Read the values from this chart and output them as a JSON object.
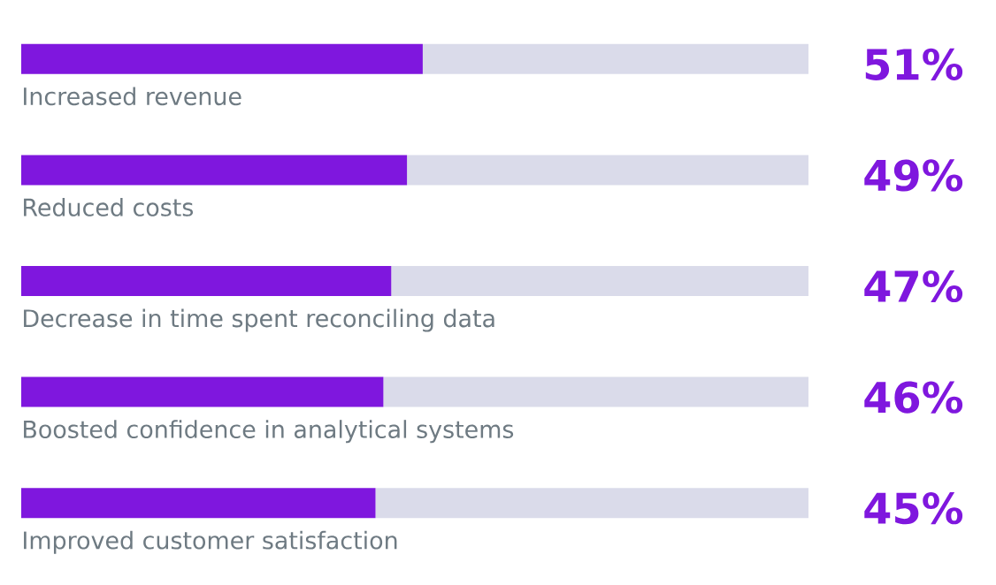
{
  "chart_data": {
    "type": "bar",
    "orientation": "horizontal",
    "stacked": true,
    "xlim": [
      0,
      100
    ],
    "tick_labels": false,
    "categories": [
      "Increased revenue",
      "Reduced costs",
      "Decrease in time spent reconciling data",
      "Boosted confidence in analytical systems",
      "Improved customer satisfaction"
    ],
    "series": [
      {
        "color": "#7f17de",
        "values": [
          51,
          49,
          47,
          46,
          45
        ],
        "value_labels": [
          "51%",
          "49%",
          "47%",
          "46%",
          "45%"
        ]
      },
      {
        "color": "#dadbea",
        "values": [
          49,
          51,
          53,
          54,
          55
        ]
      }
    ]
  }
}
